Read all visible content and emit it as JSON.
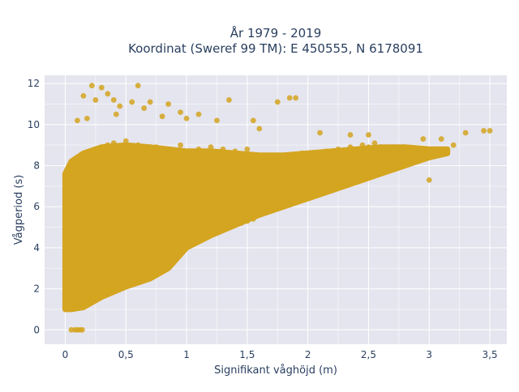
{
  "chart_data": {
    "type": "scatter",
    "title_line1": "År 1979 - 2019",
    "title_line2": "Koordinat (Sweref 99 TM): E 450555, N 6178091",
    "xlabel": "Signifikant våghöjd (m)",
    "ylabel": "Vågperiod (s)",
    "xlim": [
      -0.17,
      3.64
    ],
    "ylim": [
      -0.7,
      12.4
    ],
    "x_ticks": [
      0,
      0.5,
      1,
      1.5,
      2,
      2.5,
      3,
      3.5
    ],
    "x_tick_labels": [
      "0",
      "0,5",
      "1",
      "1,5",
      "2",
      "2,5",
      "3",
      "3,5"
    ],
    "y_ticks": [
      0,
      2,
      4,
      6,
      8,
      10,
      12
    ],
    "y_tick_labels": [
      "0",
      "2",
      "4",
      "6",
      "8",
      "10",
      "12"
    ],
    "grid": true,
    "marker_color": "#d4a520",
    "plot_background": "#e5e5ef",
    "series": [
      {
        "points": [
          [
            0.05,
            0
          ],
          [
            0.08,
            0
          ],
          [
            0.1,
            0
          ],
          [
            0.12,
            0
          ],
          [
            0.14,
            0
          ],
          [
            0.05,
            1.2
          ],
          [
            0.05,
            2.0
          ],
          [
            0.05,
            3.0
          ],
          [
            0.05,
            4.0
          ],
          [
            0.05,
            5.0
          ],
          [
            0.05,
            6.0
          ],
          [
            0.05,
            7.0
          ],
          [
            0.05,
            7.8
          ],
          [
            0.1,
            1.1
          ],
          [
            0.1,
            2.5
          ],
          [
            0.1,
            4.5
          ],
          [
            0.1,
            6.5
          ],
          [
            0.1,
            8.0
          ],
          [
            0.15,
            1.3
          ],
          [
            0.15,
            3.0
          ],
          [
            0.15,
            5.5
          ],
          [
            0.15,
            7.5
          ],
          [
            0.15,
            8.4
          ],
          [
            0.2,
            1.5
          ],
          [
            0.2,
            3.5
          ],
          [
            0.2,
            5.0
          ],
          [
            0.2,
            7.0
          ],
          [
            0.2,
            8.6
          ],
          [
            0.25,
            1.6
          ],
          [
            0.25,
            4.0
          ],
          [
            0.25,
            6.0
          ],
          [
            0.25,
            8.0
          ],
          [
            0.25,
            8.8
          ],
          [
            0.3,
            1.8
          ],
          [
            0.3,
            3.0
          ],
          [
            0.3,
            5.5
          ],
          [
            0.3,
            7.5
          ],
          [
            0.3,
            8.8
          ],
          [
            0.35,
            1.9
          ],
          [
            0.35,
            4.2
          ],
          [
            0.35,
            6.5
          ],
          [
            0.35,
            8.3
          ],
          [
            0.35,
            9.0
          ],
          [
            0.4,
            2.0
          ],
          [
            0.4,
            3.5
          ],
          [
            0.4,
            6.0
          ],
          [
            0.4,
            8.0
          ],
          [
            0.4,
            9.1
          ],
          [
            0.45,
            2.1
          ],
          [
            0.45,
            4.5
          ],
          [
            0.45,
            6.8
          ],
          [
            0.45,
            8.5
          ],
          [
            0.5,
            2.2
          ],
          [
            0.5,
            4.0
          ],
          [
            0.5,
            6.2
          ],
          [
            0.5,
            8.2
          ],
          [
            0.5,
            9.2
          ],
          [
            0.55,
            2.3
          ],
          [
            0.55,
            4.8
          ],
          [
            0.55,
            7.0
          ],
          [
            0.55,
            8.6
          ],
          [
            0.6,
            2.4
          ],
          [
            0.6,
            4.2
          ],
          [
            0.6,
            6.5
          ],
          [
            0.6,
            8.4
          ],
          [
            0.6,
            9.0
          ],
          [
            0.65,
            2.5
          ],
          [
            0.65,
            5.0
          ],
          [
            0.65,
            7.2
          ],
          [
            0.65,
            8.8
          ],
          [
            0.7,
            2.6
          ],
          [
            0.7,
            4.5
          ],
          [
            0.7,
            6.8
          ],
          [
            0.7,
            8.5
          ],
          [
            0.75,
            2.7
          ],
          [
            0.75,
            5.2
          ],
          [
            0.75,
            7.4
          ],
          [
            0.75,
            8.9
          ],
          [
            0.8,
            3.0
          ],
          [
            0.8,
            5.0
          ],
          [
            0.8,
            7.0
          ],
          [
            0.8,
            8.6
          ],
          [
            0.85,
            3.4
          ],
          [
            0.85,
            5.5
          ],
          [
            0.85,
            7.5
          ],
          [
            0.85,
            8.8
          ],
          [
            0.9,
            3.6
          ],
          [
            0.9,
            5.2
          ],
          [
            0.9,
            7.2
          ],
          [
            0.9,
            8.5
          ],
          [
            0.95,
            3.8
          ],
          [
            0.95,
            5.8
          ],
          [
            0.95,
            7.6
          ],
          [
            0.95,
            9.0
          ],
          [
            1.0,
            4.0
          ],
          [
            1.0,
            5.5
          ],
          [
            1.0,
            7.3
          ],
          [
            1.0,
            8.7
          ],
          [
            1.05,
            4.2
          ],
          [
            1.05,
            6.0
          ],
          [
            1.05,
            7.8
          ],
          [
            1.1,
            4.3
          ],
          [
            1.1,
            5.8
          ],
          [
            1.1,
            7.5
          ],
          [
            1.1,
            8.8
          ],
          [
            1.15,
            4.5
          ],
          [
            1.15,
            6.2
          ],
          [
            1.15,
            7.9
          ],
          [
            1.2,
            4.6
          ],
          [
            1.2,
            6.0
          ],
          [
            1.2,
            7.6
          ],
          [
            1.2,
            8.9
          ],
          [
            1.25,
            4.8
          ],
          [
            1.25,
            6.4
          ],
          [
            1.25,
            8.0
          ],
          [
            1.3,
            4.9
          ],
          [
            1.3,
            6.3
          ],
          [
            1.3,
            7.8
          ],
          [
            1.3,
            8.8
          ],
          [
            1.35,
            5.0
          ],
          [
            1.35,
            6.6
          ],
          [
            1.35,
            8.1
          ],
          [
            1.4,
            5.1
          ],
          [
            1.4,
            6.5
          ],
          [
            1.4,
            7.9
          ],
          [
            1.4,
            8.7
          ],
          [
            1.45,
            5.2
          ],
          [
            1.45,
            6.8
          ],
          [
            1.45,
            8.2
          ],
          [
            1.5,
            5.3
          ],
          [
            1.5,
            6.7
          ],
          [
            1.5,
            8.0
          ],
          [
            1.5,
            8.8
          ],
          [
            1.55,
            5.4
          ],
          [
            1.55,
            6.9
          ],
          [
            1.55,
            8.2
          ],
          [
            1.6,
            5.6
          ],
          [
            1.6,
            6.9
          ],
          [
            1.6,
            8.1
          ],
          [
            1.65,
            5.7
          ],
          [
            1.65,
            7.0
          ],
          [
            1.65,
            8.3
          ],
          [
            1.7,
            5.8
          ],
          [
            1.7,
            7.0
          ],
          [
            1.7,
            8.2
          ],
          [
            1.75,
            5.9
          ],
          [
            1.75,
            7.1
          ],
          [
            1.75,
            8.4
          ],
          [
            1.8,
            6.0
          ],
          [
            1.8,
            7.2
          ],
          [
            1.8,
            8.3
          ],
          [
            1.85,
            6.1
          ],
          [
            1.85,
            7.3
          ],
          [
            1.85,
            8.5
          ],
          [
            1.9,
            6.2
          ],
          [
            1.9,
            7.3
          ],
          [
            1.9,
            8.4
          ],
          [
            1.95,
            6.3
          ],
          [
            1.95,
            7.4
          ],
          [
            1.95,
            8.6
          ],
          [
            2.0,
            6.4
          ],
          [
            2.0,
            7.4
          ],
          [
            2.0,
            8.5
          ],
          [
            2.05,
            6.5
          ],
          [
            2.05,
            7.5
          ],
          [
            2.05,
            8.6
          ],
          [
            2.1,
            6.6
          ],
          [
            2.1,
            7.5
          ],
          [
            2.1,
            8.5
          ],
          [
            2.15,
            6.7
          ],
          [
            2.15,
            7.6
          ],
          [
            2.15,
            8.7
          ],
          [
            2.2,
            6.8
          ],
          [
            2.2,
            7.7
          ],
          [
            2.2,
            8.6
          ],
          [
            2.25,
            6.9
          ],
          [
            2.25,
            7.8
          ],
          [
            2.25,
            8.8
          ],
          [
            2.3,
            7.0
          ],
          [
            2.3,
            7.8
          ],
          [
            2.3,
            8.7
          ],
          [
            2.35,
            7.1
          ],
          [
            2.35,
            7.9
          ],
          [
            2.35,
            8.9
          ],
          [
            2.4,
            7.2
          ],
          [
            2.4,
            8.0
          ],
          [
            2.4,
            8.8
          ],
          [
            2.45,
            7.3
          ],
          [
            2.45,
            8.0
          ],
          [
            2.45,
            9.0
          ],
          [
            2.5,
            7.4
          ],
          [
            2.5,
            8.1
          ],
          [
            2.5,
            8.9
          ],
          [
            2.55,
            7.5
          ],
          [
            2.55,
            8.2
          ],
          [
            2.55,
            9.1
          ],
          [
            2.6,
            7.6
          ],
          [
            2.6,
            8.2
          ],
          [
            2.6,
            8.9
          ],
          [
            2.65,
            7.7
          ],
          [
            2.65,
            8.3
          ],
          [
            2.65,
            8.8
          ],
          [
            2.7,
            7.8
          ],
          [
            2.7,
            8.4
          ],
          [
            2.7,
            8.9
          ],
          [
            2.75,
            7.9
          ],
          [
            2.75,
            8.5
          ],
          [
            2.75,
            8.8
          ],
          [
            2.8,
            8.0
          ],
          [
            2.8,
            8.5
          ],
          [
            2.8,
            8.9
          ],
          [
            2.85,
            8.1
          ],
          [
            2.85,
            8.6
          ],
          [
            2.9,
            8.2
          ],
          [
            2.9,
            8.6
          ],
          [
            2.95,
            8.3
          ],
          [
            2.95,
            8.7
          ],
          [
            3.0,
            8.4
          ],
          [
            3.0,
            7.3
          ],
          [
            3.05,
            8.6
          ],
          [
            3.1,
            8.7
          ],
          [
            3.1,
            9.3
          ],
          [
            3.15,
            8.7
          ],
          [
            3.2,
            9.0
          ],
          [
            3.3,
            9.6
          ],
          [
            3.45,
            9.7
          ],
          [
            3.5,
            9.7
          ],
          [
            0.22,
            11.9
          ],
          [
            0.3,
            11.8
          ],
          [
            0.35,
            11.5
          ],
          [
            0.6,
            11.9
          ],
          [
            0.15,
            11.4
          ],
          [
            0.25,
            11.2
          ],
          [
            0.4,
            11.2
          ],
          [
            0.55,
            11.1
          ],
          [
            0.7,
            11.1
          ],
          [
            0.45,
            10.9
          ],
          [
            0.65,
            10.8
          ],
          [
            0.85,
            11.0
          ],
          [
            1.35,
            11.2
          ],
          [
            1.85,
            11.3
          ],
          [
            1.9,
            11.3
          ],
          [
            1.75,
            11.1
          ],
          [
            0.95,
            10.6
          ],
          [
            1.1,
            10.5
          ],
          [
            1.55,
            10.2
          ],
          [
            0.1,
            10.2
          ],
          [
            0.18,
            10.3
          ],
          [
            0.42,
            10.5
          ],
          [
            0.8,
            10.4
          ],
          [
            1.0,
            10.3
          ],
          [
            1.25,
            10.2
          ],
          [
            1.6,
            9.8
          ],
          [
            2.1,
            9.6
          ],
          [
            2.35,
            9.5
          ],
          [
            2.5,
            9.5
          ],
          [
            2.95,
            9.3
          ]
        ]
      }
    ]
  }
}
